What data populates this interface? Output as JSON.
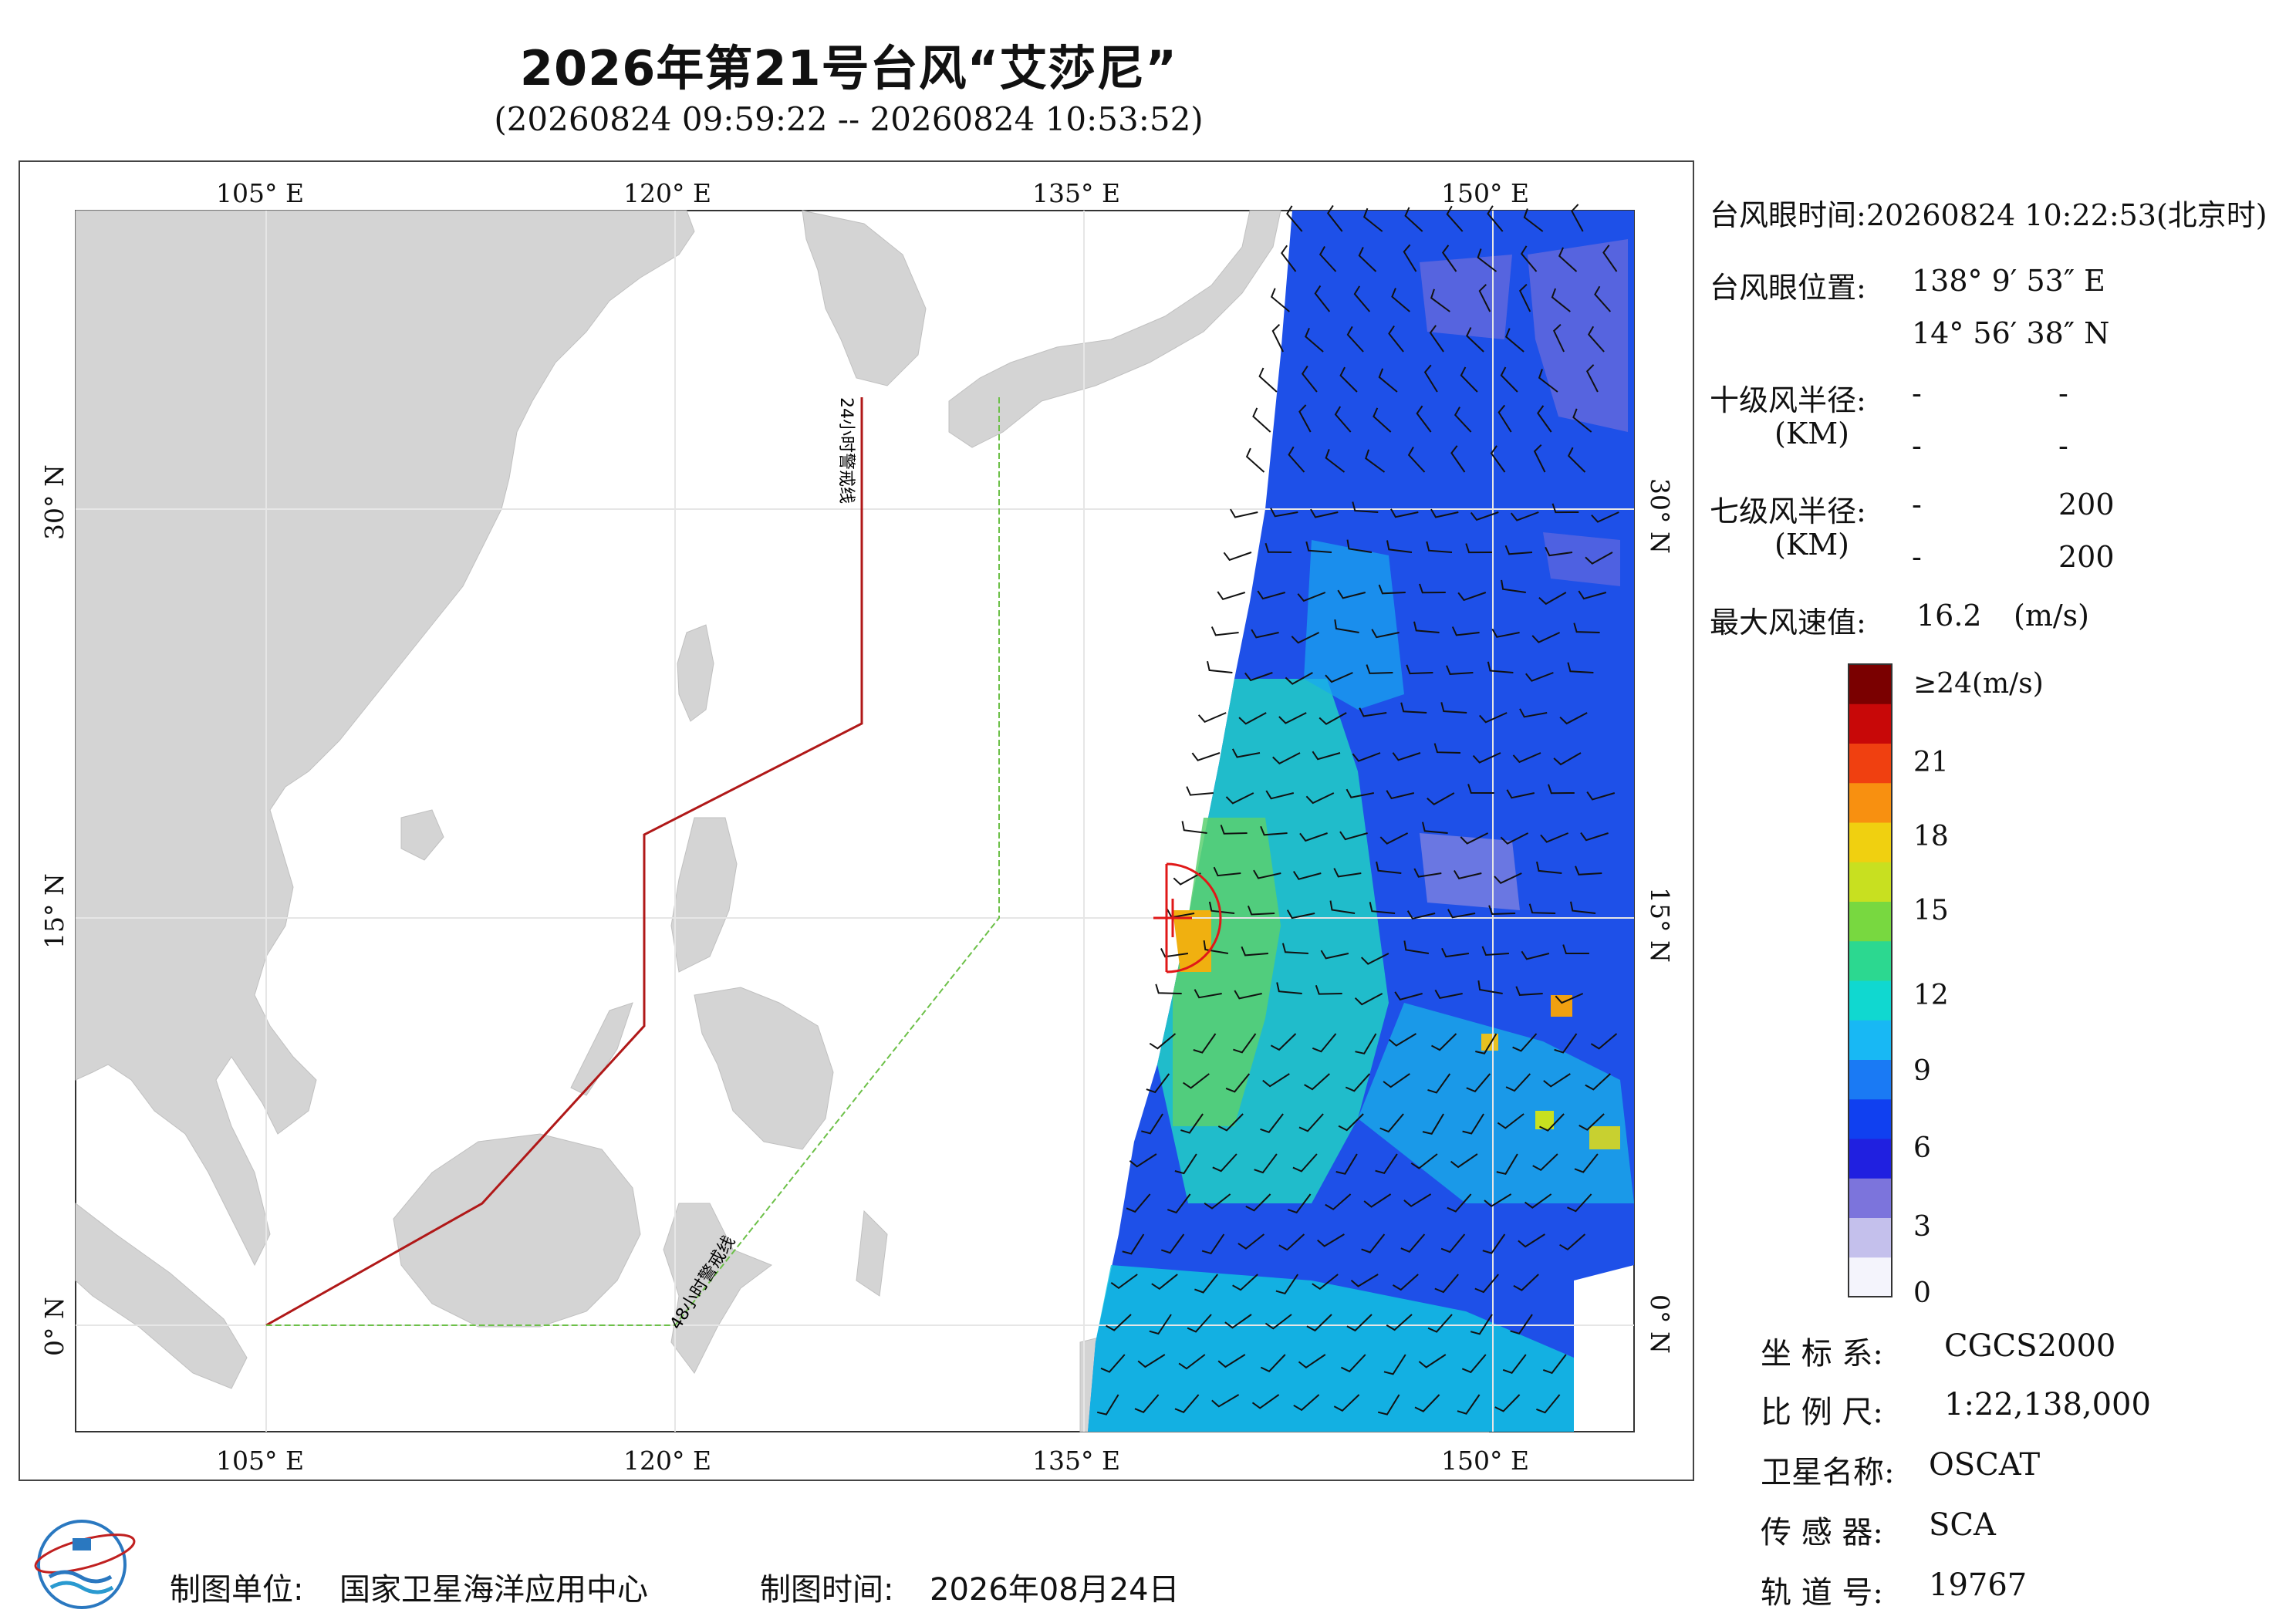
{
  "title": "2026年第21号台风“艾莎尼”",
  "subtitle": "(20260824 09:59:22 -- 20260824 10:53:52)",
  "map": {
    "lon_labels": [
      "105° E",
      "120° E",
      "135° E",
      "150° E"
    ],
    "lat_labels": [
      "30° N",
      "15° N",
      "0° N"
    ],
    "warning_24h": "24小时警戒线",
    "warning_48h": "48小时警戒线",
    "colors": {
      "land": "#d4d4d4",
      "sea": "#ffffff",
      "line24": "#b01818",
      "line48": "#6cc048",
      "eye": "#e01818"
    }
  },
  "info": {
    "eye_time_label": "台风眼时间:",
    "eye_time": "20260824 10:22:53(北京时)",
    "eye_pos_label": "台风眼位置:",
    "eye_lon": "138° 9′ 53″ E",
    "eye_lat": "14° 56′ 38″ N",
    "r10_label": "十级风半径:",
    "r10_unit": "(KM)",
    "r10_values": [
      "-",
      "-",
      "-",
      "-"
    ],
    "r7_label": "七级风半径:",
    "r7_unit": "(KM)",
    "r7_values": [
      "-",
      "200",
      "-",
      "200"
    ],
    "max_label": "最大风速值:",
    "max_value": "16.2",
    "max_unit": "(m/s)"
  },
  "colorbar": {
    "ticks": [
      "≥24(m/s)",
      "21",
      "18",
      "15",
      "12",
      "9",
      "6",
      "3",
      "0"
    ],
    "colors": [
      "#f4f4fc",
      "#c4c0ec",
      "#7c74dc",
      "#2020e0",
      "#1040f0",
      "#1a7af4",
      "#18b8f4",
      "#10d8d0",
      "#2cd890",
      "#78d840",
      "#c8e020",
      "#f0d010",
      "#f89010",
      "#f04010",
      "#c80808",
      "#7a0000"
    ]
  },
  "meta": {
    "crs_label": "坐 标 系:",
    "crs": "CGCS2000",
    "scale_label": "比 例 尺:",
    "scale": "1:22,138,000",
    "sat_label": "卫星名称:",
    "sat": "OSCAT",
    "sensor_label": "传 感 器:",
    "sensor": "SCA",
    "orbit_label": "轨 道 号:",
    "orbit": "19767"
  },
  "footer": {
    "unit_label": "制图单位:",
    "unit": "国家卫星海洋应用中心",
    "time_label": "制图时间:",
    "time": "2026年08月24日"
  }
}
